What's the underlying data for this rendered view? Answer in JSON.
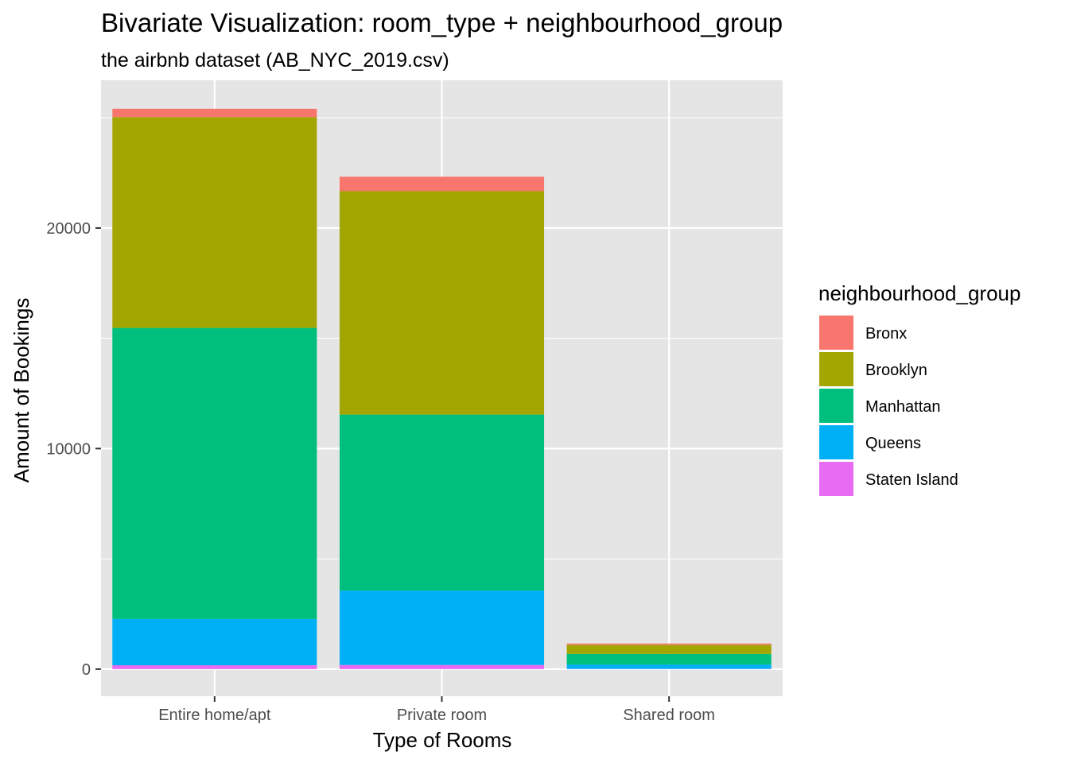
{
  "chart_data": {
    "type": "bar",
    "stacked": true,
    "title": "Bivariate Visualization: room_type + neighbourhood_group",
    "subtitle": "the airbnb dataset (AB_NYC_2019.csv)",
    "xlabel": "Type of Rooms",
    "ylabel": "Amount of Bookings",
    "categories": [
      "Entire home/apt",
      "Private room",
      "Shared room"
    ],
    "series": [
      {
        "name": "Bronx",
        "color": "#F8766D",
        "values": [
          379,
          652,
          60
        ]
      },
      {
        "name": "Brooklyn",
        "color": "#A3A500",
        "values": [
          9559,
          10132,
          413
        ]
      },
      {
        "name": "Manhattan",
        "color": "#00BF7D",
        "values": [
          13199,
          7982,
          480
        ]
      },
      {
        "name": "Queens",
        "color": "#00B0F6",
        "values": [
          2096,
          3372,
          198
        ]
      },
      {
        "name": "Staten Island",
        "color": "#E76BF3",
        "values": [
          176,
          188,
          9
        ]
      }
    ],
    "stack_order_bottom_to_top": [
      "Staten Island",
      "Queens",
      "Manhattan",
      "Brooklyn",
      "Bronx"
    ],
    "yticks": [
      0,
      10000,
      20000
    ],
    "ylim": [
      -1230,
      26700
    ],
    "grid": true,
    "legend": {
      "title": "neighbourhood_group",
      "position": "right"
    },
    "panel_background": "#E5E5E5",
    "grid_color": "#FFFFFF"
  }
}
